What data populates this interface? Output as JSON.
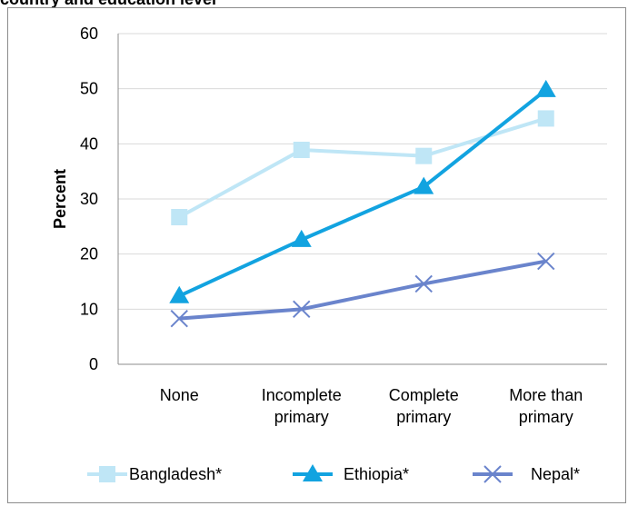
{
  "chart_data": {
    "type": "line",
    "title": "country and education level",
    "xlabel": "",
    "ylabel": "Percent",
    "ylim": [
      0,
      60
    ],
    "yticks": [
      0,
      10,
      20,
      30,
      40,
      50,
      60
    ],
    "grid": true,
    "legend_position": "bottom",
    "categories": [
      [
        "None"
      ],
      [
        "Incomplete",
        "primary"
      ],
      [
        "Complete",
        "primary"
      ],
      [
        "More than",
        "primary"
      ]
    ],
    "series": [
      {
        "name": "Bangladesh*",
        "marker": "square",
        "color": "#bfe6f6",
        "values": [
          26.7,
          38.9,
          37.8,
          44.6
        ]
      },
      {
        "name": "Ethiopia*",
        "marker": "triangle",
        "color": "#12a3e0",
        "values": [
          12.4,
          22.6,
          32.2,
          49.8
        ]
      },
      {
        "name": "Nepal*",
        "marker": "x",
        "color": "#6a84cc",
        "values": [
          8.3,
          10.0,
          14.6,
          18.7
        ]
      }
    ]
  }
}
